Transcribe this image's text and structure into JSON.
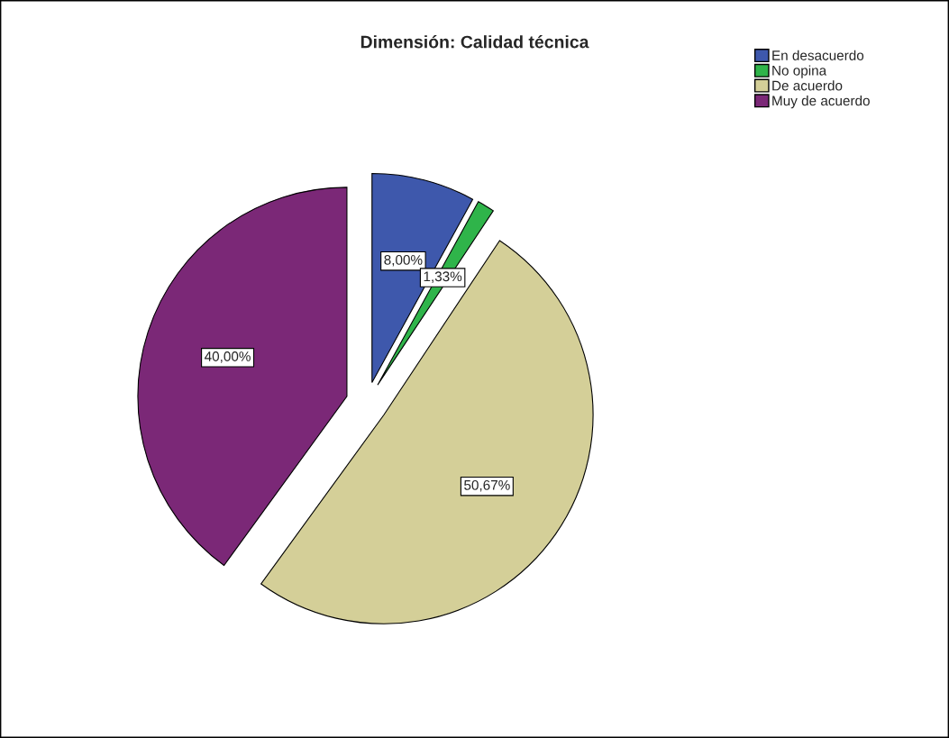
{
  "chart_data": {
    "type": "pie",
    "title": "Dimensión: Calidad técnica",
    "categories": [
      "En desacuerdo",
      "No opina",
      "De acuerdo",
      "Muy de acuerdo"
    ],
    "values": [
      8.0,
      1.33,
      50.67,
      40.0
    ],
    "value_labels": [
      "8,00%",
      "1,33%",
      "50,67%",
      "40,00%"
    ],
    "colors": [
      "#3e58ac",
      "#2fb44a",
      "#d4cf98",
      "#7b2877"
    ],
    "legend": "top right"
  }
}
